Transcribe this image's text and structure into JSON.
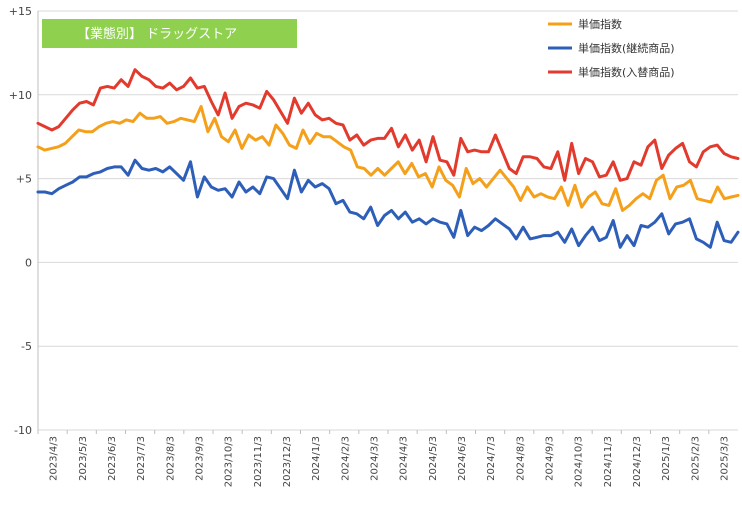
{
  "chart_data": {
    "type": "line",
    "title": "【業態別】 ドラッグストア",
    "xlabel": "",
    "ylabel": "",
    "ylim": [
      -10,
      15
    ],
    "yticks": [
      {
        "value": 15,
        "label": "+15"
      },
      {
        "value": 10,
        "label": "+10"
      },
      {
        "value": 5,
        "label": "+5"
      },
      {
        "value": 0,
        "label": "0"
      },
      {
        "value": -5,
        "label": "-5"
      },
      {
        "value": -10,
        "label": "-10"
      }
    ],
    "x_tick_labels": [
      "2023/4/3",
      "2023/5/3",
      "2023/6/3",
      "2023/7/3",
      "2023/8/3",
      "2023/9/3",
      "2023/10/3",
      "2023/11/3",
      "2023/12/3",
      "2024/1/3",
      "2024/2/3",
      "2024/3/3",
      "2024/4/3",
      "2024/5/3",
      "2024/6/3",
      "2024/7/3",
      "2024/8/3",
      "2024/9/3",
      "2024/10/3",
      "2024/11/3",
      "2024/12/3",
      "2025/1/3",
      "2025/2/3",
      "2025/3/3"
    ],
    "grid": "horizontal",
    "legend_position": "top-right",
    "series": [
      {
        "name": "単価指数",
        "color": "#f5a01a",
        "values": [
          6.9,
          6.7,
          6.8,
          6.9,
          7.1,
          7.5,
          7.9,
          7.8,
          7.8,
          8.1,
          8.3,
          8.4,
          8.3,
          8.5,
          8.4,
          8.9,
          8.6,
          8.6,
          8.7,
          8.3,
          8.4,
          8.6,
          8.5,
          8.4,
          9.3,
          7.8,
          8.6,
          7.5,
          7.2,
          7.9,
          6.8,
          7.6,
          7.3,
          7.5,
          7.0,
          8.2,
          7.7,
          7.0,
          6.8,
          7.9,
          7.1,
          7.7,
          7.5,
          7.5,
          7.2,
          6.9,
          6.7,
          5.7,
          5.6,
          5.2,
          5.6,
          5.2,
          5.6,
          6.0,
          5.3,
          5.9,
          5.1,
          5.3,
          4.5,
          5.7,
          4.9,
          4.6,
          3.9,
          5.6,
          4.7,
          5.0,
          4.5,
          5.0,
          5.5,
          5.0,
          4.5,
          3.7,
          4.5,
          3.9,
          4.1,
          3.9,
          3.8,
          4.5,
          3.4,
          4.6,
          3.3,
          3.9,
          4.2,
          3.5,
          3.4,
          4.4,
          3.1,
          3.4,
          3.8,
          4.1,
          3.8,
          4.9,
          5.2,
          3.8,
          4.5,
          4.6,
          4.9,
          3.8,
          3.7,
          3.6,
          4.5,
          3.8,
          3.9,
          4.0
        ]
      },
      {
        "name": "単価指数(継続商品)",
        "color": "#2e5fb8",
        "values": [
          4.2,
          4.2,
          4.1,
          4.4,
          4.6,
          4.8,
          5.1,
          5.1,
          5.3,
          5.4,
          5.6,
          5.7,
          5.7,
          5.2,
          6.1,
          5.6,
          5.5,
          5.6,
          5.4,
          5.7,
          5.3,
          4.9,
          6.0,
          3.9,
          5.1,
          4.5,
          4.3,
          4.4,
          3.9,
          4.8,
          4.2,
          4.5,
          4.1,
          5.1,
          5.0,
          4.4,
          3.8,
          5.5,
          4.2,
          4.9,
          4.5,
          4.7,
          4.4,
          3.5,
          3.7,
          3.0,
          2.9,
          2.6,
          3.3,
          2.2,
          2.8,
          3.1,
          2.6,
          3.0,
          2.4,
          2.6,
          2.3,
          2.6,
          2.4,
          2.3,
          1.5,
          3.1,
          1.6,
          2.1,
          1.9,
          2.2,
          2.6,
          2.3,
          2.0,
          1.4,
          2.1,
          1.4,
          1.5,
          1.6,
          1.6,
          1.8,
          1.2,
          2.0,
          1.0,
          1.6,
          2.1,
          1.3,
          1.5,
          2.5,
          0.9,
          1.6,
          1.0,
          2.2,
          2.1,
          2.4,
          2.9,
          1.7,
          2.3,
          2.4,
          2.6,
          1.4,
          1.2,
          0.9,
          2.4,
          1.3,
          1.2,
          1.8
        ]
      },
      {
        "name": "単価指数(入替商品)",
        "color": "#e23b2e",
        "values": [
          8.3,
          8.1,
          7.9,
          8.1,
          8.6,
          9.1,
          9.5,
          9.6,
          9.4,
          10.4,
          10.5,
          10.4,
          10.9,
          10.5,
          11.5,
          11.1,
          10.9,
          10.5,
          10.4,
          10.7,
          10.3,
          10.5,
          11.0,
          10.4,
          10.5,
          9.6,
          8.8,
          10.1,
          8.6,
          9.3,
          9.5,
          9.4,
          9.2,
          10.2,
          9.7,
          9.0,
          8.3,
          9.8,
          8.9,
          9.5,
          8.8,
          8.5,
          8.6,
          8.3,
          8.2,
          7.3,
          7.6,
          7.0,
          7.3,
          7.4,
          7.4,
          8.0,
          6.9,
          7.6,
          6.7,
          7.3,
          6.0,
          7.5,
          6.1,
          6.0,
          5.2,
          7.4,
          6.6,
          6.7,
          6.6,
          6.6,
          7.6,
          6.6,
          5.6,
          5.3,
          6.3,
          6.3,
          6.2,
          5.7,
          5.6,
          6.6,
          4.9,
          7.1,
          5.3,
          6.2,
          6.0,
          5.1,
          5.2,
          6.0,
          4.9,
          5.0,
          6.0,
          5.8,
          6.9,
          7.3,
          5.6,
          6.4,
          6.8,
          7.1,
          6.0,
          5.7,
          6.6,
          6.9,
          7.0,
          6.5,
          6.3,
          6.2
        ]
      }
    ]
  }
}
